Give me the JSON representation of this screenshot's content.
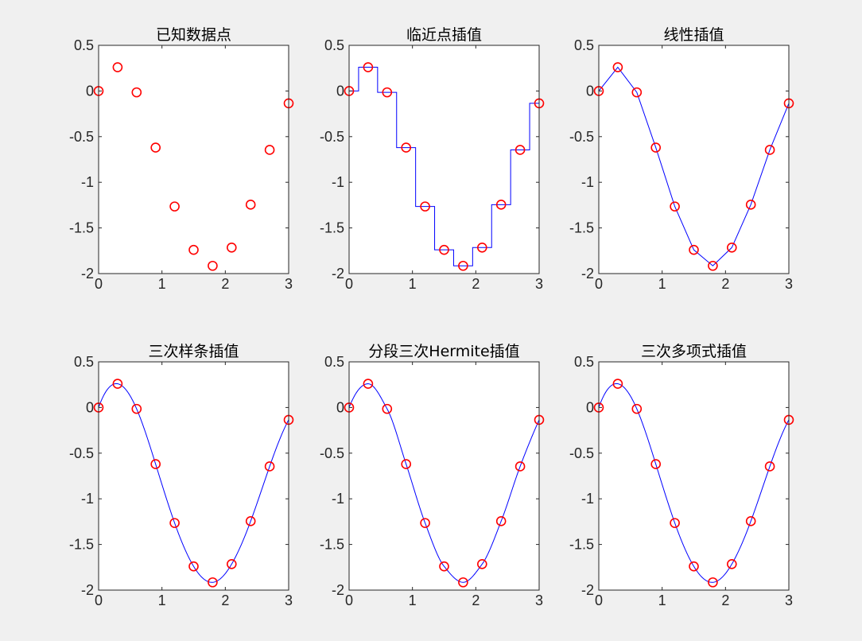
{
  "figure": {
    "background": "#f0f0f0",
    "axes_background": "#ffffff",
    "axis_color": "#262626",
    "marker_color": "#ff0000",
    "line_color": "#0000ff"
  },
  "chart_data": [
    {
      "type": "scatter",
      "title": "已知数据点",
      "xlim": [
        0,
        3
      ],
      "ylim": [
        -2,
        0.5
      ],
      "xticks": [
        0,
        1,
        2,
        3
      ],
      "yticks": [
        -2,
        -1.5,
        -1,
        -0.5,
        0,
        0.5
      ],
      "xticklabels": [
        "0",
        "1",
        "2",
        "3"
      ],
      "yticklabels": [
        "-2",
        "-1.5",
        "-1",
        "-0.5",
        "0",
        "0.5"
      ],
      "grid": false,
      "points": {
        "marker": "o",
        "x": [
          0,
          0.3,
          0.6,
          0.9,
          1.2,
          1.5,
          1.8,
          2.1,
          2.4,
          2.7,
          3.0
        ],
        "y": [
          0,
          0.26,
          -0.015,
          -0.62,
          -1.265,
          -1.74,
          -1.915,
          -1.715,
          -1.245,
          -0.645,
          -0.135
        ]
      },
      "curve": null
    },
    {
      "type": "line",
      "title": "临近点插值",
      "xlim": [
        0,
        3
      ],
      "ylim": [
        -2,
        0.5
      ],
      "xticks": [
        0,
        1,
        2,
        3
      ],
      "yticks": [
        -2,
        -1.5,
        -1,
        -0.5,
        0,
        0.5
      ],
      "xticklabels": [
        "0",
        "1",
        "2",
        "3"
      ],
      "yticklabels": [
        "-2",
        "-1.5",
        "-1",
        "-0.5",
        "0",
        "0.5"
      ],
      "grid": false,
      "points": {
        "marker": "o",
        "x": [
          0,
          0.3,
          0.6,
          0.9,
          1.2,
          1.5,
          1.8,
          2.1,
          2.4,
          2.7,
          3.0
        ],
        "y": [
          0,
          0.26,
          -0.015,
          -0.62,
          -1.265,
          -1.74,
          -1.915,
          -1.715,
          -1.245,
          -0.645,
          -0.135
        ]
      },
      "curve": "nearest"
    },
    {
      "type": "line",
      "title": "线性插值",
      "xlim": [
        0,
        3
      ],
      "ylim": [
        -2,
        0.5
      ],
      "xticks": [
        0,
        1,
        2,
        3
      ],
      "yticks": [
        -2,
        -1.5,
        -1,
        -0.5,
        0,
        0.5
      ],
      "xticklabels": [
        "0",
        "1",
        "2",
        "3"
      ],
      "yticklabels": [
        "-2",
        "-1.5",
        "-1",
        "-0.5",
        "0",
        "0.5"
      ],
      "grid": false,
      "points": {
        "marker": "o",
        "x": [
          0,
          0.3,
          0.6,
          0.9,
          1.2,
          1.5,
          1.8,
          2.1,
          2.4,
          2.7,
          3.0
        ],
        "y": [
          0,
          0.26,
          -0.015,
          -0.62,
          -1.265,
          -1.74,
          -1.915,
          -1.715,
          -1.245,
          -0.645,
          -0.135
        ]
      },
      "curve": "linear"
    },
    {
      "type": "line",
      "title": "三次样条插值",
      "xlim": [
        0,
        3
      ],
      "ylim": [
        -2,
        0.5
      ],
      "xticks": [
        0,
        1,
        2,
        3
      ],
      "yticks": [
        -2,
        -1.5,
        -1,
        -0.5,
        0,
        0.5
      ],
      "xticklabels": [
        "0",
        "1",
        "2",
        "3"
      ],
      "yticklabels": [
        "-2",
        "-1.5",
        "-1",
        "-0.5",
        "0",
        "0.5"
      ],
      "grid": false,
      "points": {
        "marker": "o",
        "x": [
          0,
          0.3,
          0.6,
          0.9,
          1.2,
          1.5,
          1.8,
          2.1,
          2.4,
          2.7,
          3.0
        ],
        "y": [
          0,
          0.26,
          -0.015,
          -0.62,
          -1.265,
          -1.74,
          -1.915,
          -1.715,
          -1.245,
          -0.645,
          -0.135
        ]
      },
      "curve": "spline"
    },
    {
      "type": "line",
      "title": "分段三次Hermite插值",
      "xlim": [
        0,
        3
      ],
      "ylim": [
        -2,
        0.5
      ],
      "xticks": [
        0,
        1,
        2,
        3
      ],
      "yticks": [
        -2,
        -1.5,
        -1,
        -0.5,
        0,
        0.5
      ],
      "xticklabels": [
        "0",
        "1",
        "2",
        "3"
      ],
      "yticklabels": [
        "-2",
        "-1.5",
        "-1",
        "-0.5",
        "0",
        "0.5"
      ],
      "grid": false,
      "points": {
        "marker": "o",
        "x": [
          0,
          0.3,
          0.6,
          0.9,
          1.2,
          1.5,
          1.8,
          2.1,
          2.4,
          2.7,
          3.0
        ],
        "y": [
          0,
          0.26,
          -0.015,
          -0.62,
          -1.265,
          -1.74,
          -1.915,
          -1.715,
          -1.245,
          -0.645,
          -0.135
        ]
      },
      "curve": "pchip"
    },
    {
      "type": "line",
      "title": "三次多项式插值",
      "xlim": [
        0,
        3
      ],
      "ylim": [
        -2,
        0.5
      ],
      "xticks": [
        0,
        1,
        2,
        3
      ],
      "yticks": [
        -2,
        -1.5,
        -1,
        -0.5,
        0,
        0.5
      ],
      "xticklabels": [
        "0",
        "1",
        "2",
        "3"
      ],
      "yticklabels": [
        "-2",
        "-1.5",
        "-1",
        "-0.5",
        "0",
        "0.5"
      ],
      "grid": false,
      "points": {
        "marker": "o",
        "x": [
          0,
          0.3,
          0.6,
          0.9,
          1.2,
          1.5,
          1.8,
          2.1,
          2.4,
          2.7,
          3.0
        ],
        "y": [
          0,
          0.26,
          -0.015,
          -0.62,
          -1.265,
          -1.74,
          -1.915,
          -1.715,
          -1.245,
          -0.645,
          -0.135
        ]
      },
      "curve": "spline"
    }
  ]
}
